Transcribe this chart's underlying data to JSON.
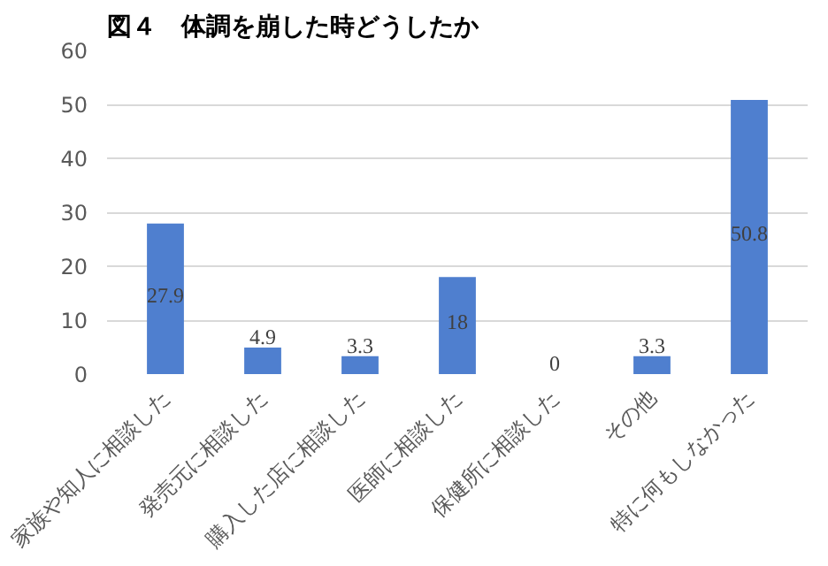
{
  "chart_data": {
    "type": "bar",
    "title": "図４　体調を崩した時どうしたか",
    "categories": [
      "家族や知人に相談した",
      "発売元に相談した",
      "購入した店に相談した",
      "医師に相談した",
      "保健所に相談した",
      "その他",
      "特に何もしなかった"
    ],
    "values": [
      27.9,
      4.9,
      3.3,
      18,
      0,
      3.3,
      50.8
    ],
    "color": "#4f7fcf",
    "ylim": [
      0,
      60
    ],
    "yticks": [
      0,
      10,
      20,
      30,
      40,
      50,
      60
    ],
    "grid": "y",
    "data_labels": true
  }
}
